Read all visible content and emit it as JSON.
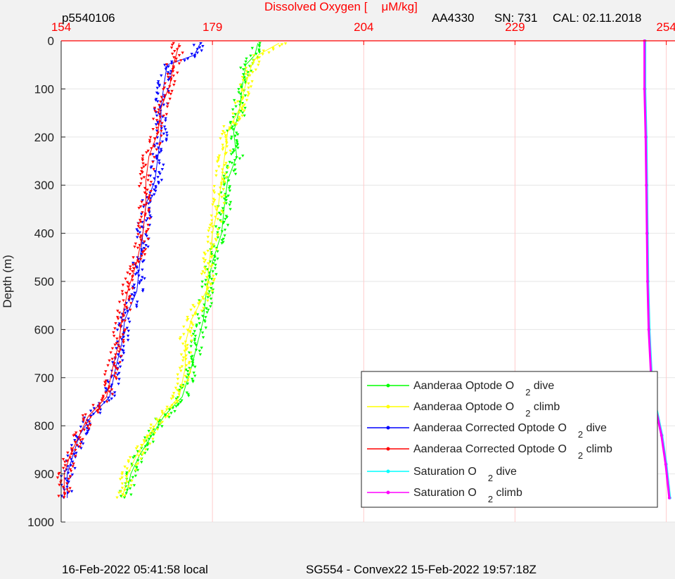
{
  "header": {
    "profile_id": "p5540106",
    "title_prefix": "Dissolved Oxygen [",
    "title_units": "μM/kg]",
    "sensor": "AA4330",
    "serial": "SN: 731",
    "calibration": "CAL: 02.11.2018"
  },
  "footer": {
    "local_time": "16-Feb-2022 05:41:58 local",
    "mission": "SG554 - Convex22 15-Feb-2022 19:57:18Z"
  },
  "colors": {
    "axis_top": "#ff0000",
    "grid_x": "#ffcccc",
    "grid_y": "#e6e6e6",
    "background": "#f2f2f2",
    "plot_area": "#ffffff"
  },
  "chart_data": {
    "type": "scatter",
    "xlabel": "Dissolved Oxygen [μM/kg]",
    "ylabel": "Depth (m)",
    "xlim": [
      154,
      255
    ],
    "ylim": [
      0,
      1000
    ],
    "y_reversed": true,
    "x_axis_position": "top",
    "xticks": [
      154,
      179,
      204,
      229,
      254
    ],
    "yticks": [
      0,
      100,
      200,
      300,
      400,
      500,
      600,
      700,
      800,
      900,
      1000
    ],
    "grid": true,
    "legend_position": "bottom-right",
    "series": [
      {
        "name": "Aanderaa Optode O",
        "sub": "2",
        "suffix": " dive",
        "color": "#00ff00",
        "marker": "triangle",
        "points": [
          [
            186.5,
            5
          ],
          [
            186,
            30
          ],
          [
            184.5,
            50
          ],
          [
            184,
            90
          ],
          [
            183.5,
            140
          ],
          [
            182.5,
            190
          ],
          [
            183,
            240
          ],
          [
            181.5,
            290
          ],
          [
            181,
            340
          ],
          [
            180.5,
            400
          ],
          [
            179,
            460
          ],
          [
            178,
            520
          ],
          [
            177.5,
            580
          ],
          [
            176.5,
            630
          ],
          [
            175.5,
            680
          ],
          [
            174,
            740
          ],
          [
            171,
            780
          ],
          [
            169,
            820
          ],
          [
            167,
            860
          ],
          [
            165.5,
            900
          ],
          [
            165,
            930
          ],
          [
            164.5,
            950
          ]
        ]
      },
      {
        "name": "Aanderaa Optode O",
        "sub": "2",
        "suffix": " climb",
        "color": "#ffff00",
        "marker": "triangle",
        "points": [
          [
            190,
            5
          ],
          [
            186.5,
            30
          ],
          [
            185.5,
            50
          ],
          [
            184.5,
            90
          ],
          [
            183.5,
            140
          ],
          [
            181.5,
            190
          ],
          [
            181,
            240
          ],
          [
            180.5,
            290
          ],
          [
            180,
            340
          ],
          [
            179,
            400
          ],
          [
            178.5,
            460
          ],
          [
            178,
            520
          ],
          [
            175.5,
            580
          ],
          [
            174.5,
            630
          ],
          [
            174.5,
            680
          ],
          [
            173.5,
            740
          ],
          [
            170.5,
            780
          ],
          [
            168.5,
            820
          ],
          [
            166.5,
            860
          ],
          [
            165,
            900
          ],
          [
            164.5,
            930
          ],
          [
            164,
            950
          ]
        ]
      },
      {
        "name": "Aanderaa Corrected Optode O",
        "sub": "2",
        "suffix": " dive",
        "color": "#0000ff",
        "marker": "triangle",
        "points": [
          [
            177,
            5
          ],
          [
            176,
            30
          ],
          [
            171.5,
            50
          ],
          [
            171,
            90
          ],
          [
            170.5,
            140
          ],
          [
            170.5,
            190
          ],
          [
            170,
            240
          ],
          [
            169.5,
            290
          ],
          [
            168,
            340
          ],
          [
            167.5,
            400
          ],
          [
            167,
            460
          ],
          [
            166.5,
            520
          ],
          [
            164.5,
            580
          ],
          [
            164,
            630
          ],
          [
            163,
            680
          ],
          [
            162,
            740
          ],
          [
            159,
            780
          ],
          [
            157,
            820
          ],
          [
            156,
            860
          ],
          [
            155,
            900
          ],
          [
            155,
            930
          ],
          [
            155,
            950
          ]
        ]
      },
      {
        "name": "Aanderaa Corrected Optode O",
        "sub": "2",
        "suffix": " climb",
        "color": "#ff0000",
        "marker": "triangle",
        "points": [
          [
            173.5,
            5
          ],
          [
            173,
            30
          ],
          [
            172.5,
            50
          ],
          [
            172,
            90
          ],
          [
            170.5,
            140
          ],
          [
            170,
            190
          ],
          [
            168.5,
            240
          ],
          [
            168,
            290
          ],
          [
            168,
            340
          ],
          [
            167.5,
            400
          ],
          [
            166.5,
            460
          ],
          [
            165,
            520
          ],
          [
            164,
            580
          ],
          [
            163.5,
            630
          ],
          [
            162.5,
            680
          ],
          [
            161.5,
            740
          ],
          [
            158.5,
            780
          ],
          [
            157,
            820
          ],
          [
            155.5,
            860
          ],
          [
            154.5,
            900
          ],
          [
            154.5,
            930
          ],
          [
            154.5,
            950
          ]
        ]
      },
      {
        "name": "Saturation O",
        "sub": "2",
        "suffix": " dive",
        "color": "#00ffff",
        "marker": "dot",
        "points": [
          [
            250.5,
            0
          ],
          [
            250.5,
            100
          ],
          [
            250.7,
            200
          ],
          [
            250.8,
            300
          ],
          [
            250.9,
            400
          ],
          [
            251,
            500
          ],
          [
            251.2,
            600
          ],
          [
            251.6,
            700
          ],
          [
            252.3,
            760
          ],
          [
            253.3,
            820
          ],
          [
            254,
            880
          ],
          [
            254.6,
            950
          ]
        ]
      },
      {
        "name": "Saturation O",
        "sub": "2",
        "suffix": " climb",
        "color": "#ff00ff",
        "marker": "dot",
        "points": [
          [
            250.4,
            0
          ],
          [
            250.4,
            100
          ],
          [
            250.6,
            200
          ],
          [
            250.7,
            300
          ],
          [
            250.8,
            400
          ],
          [
            250.9,
            500
          ],
          [
            251.1,
            600
          ],
          [
            251.5,
            700
          ],
          [
            252.2,
            760
          ],
          [
            253.2,
            820
          ],
          [
            253.9,
            880
          ],
          [
            254.5,
            950
          ]
        ]
      }
    ]
  }
}
